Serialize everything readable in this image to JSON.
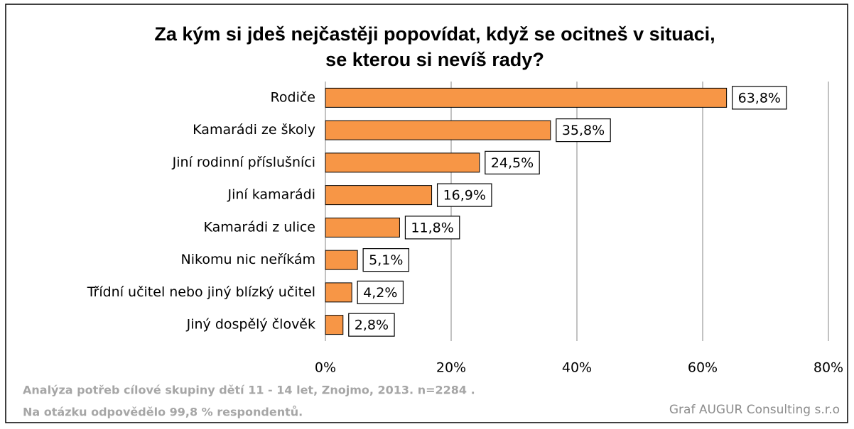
{
  "chart_data": {
    "type": "barh",
    "title": [
      "Za kým si jdeš nejčastěji popovídat, když se ocitneš v situaci,",
      "se kterou si nevíš rady?"
    ],
    "categories": [
      "Rodiče",
      "Kamarádi ze školy",
      "Jiní rodinní příslušníci",
      "Jiní kamarádi",
      "Kamarádi z ulice",
      "Nikomu nic neříkám",
      "Třídní učitel nebo jiný blízký učitel",
      "Jiný dospělý člověk"
    ],
    "values": [
      63.8,
      35.8,
      24.5,
      16.9,
      11.8,
      5.1,
      4.2,
      2.8
    ],
    "value_labels": [
      "63,8%",
      "35,8%",
      "24,5%",
      "16,9%",
      "11,8%",
      "5,1%",
      "4,2%",
      "2,8%"
    ],
    "color": "#f79646",
    "xlim": [
      0,
      80
    ],
    "xticks": [
      {
        "value": 0,
        "label": "0%"
      },
      {
        "value": 20,
        "label": "20%"
      },
      {
        "value": 40,
        "label": "40%"
      },
      {
        "value": 60,
        "label": "60%"
      },
      {
        "value": 80,
        "label": "80%"
      }
    ],
    "grid": true,
    "footnote": [
      "Analýza potřeb cílové skupiny dětí 11 - 14 let, Znojmo, 2013. n=2284 .",
      "Na otázku odpovědělo 99,8 % respondentů."
    ],
    "credit": "Graf AUGUR Consulting s.r.o"
  }
}
